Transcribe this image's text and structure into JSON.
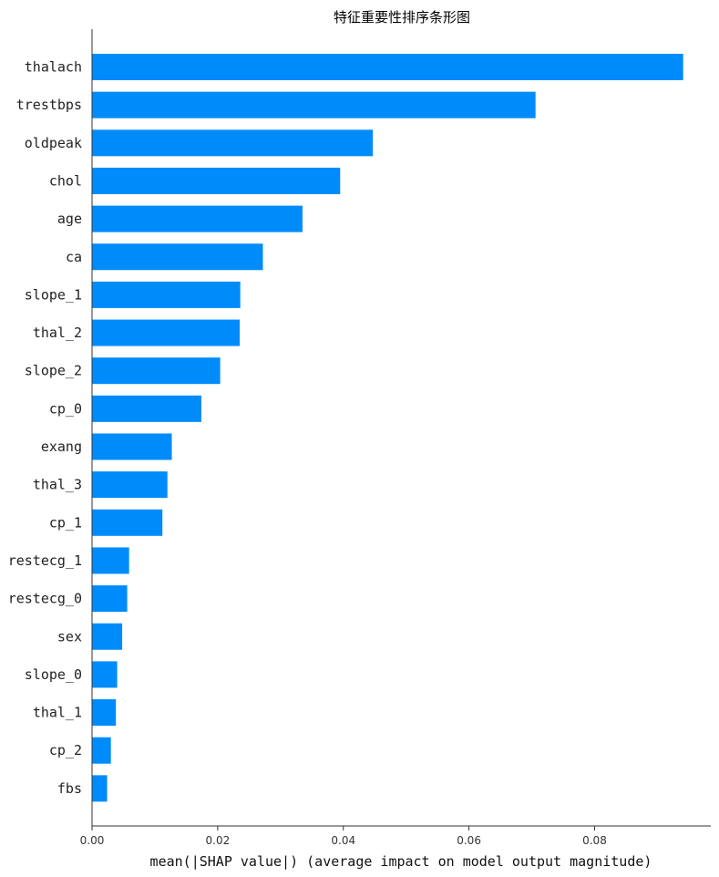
{
  "chart_data": {
    "type": "bar",
    "orientation": "horizontal",
    "title": "特征重要性排序条形图",
    "xlabel": "mean(|SHAP value|) (average impact on model output magnitude)",
    "ylabel": "",
    "xlim": [
      0,
      0.0985
    ],
    "xticks": [
      {
        "value": 0.0,
        "label": "0.00"
      },
      {
        "value": 0.02,
        "label": "0.02"
      },
      {
        "value": 0.04,
        "label": "0.04"
      },
      {
        "value": 0.06,
        "label": "0.06"
      },
      {
        "value": 0.08,
        "label": "0.08"
      }
    ],
    "grid": false,
    "bar_color": "#008bfb",
    "categories": [
      "thalach",
      "trestbps",
      "oldpeak",
      "chol",
      "age",
      "ca",
      "slope_1",
      "thal_2",
      "slope_2",
      "cp_0",
      "exang",
      "thal_3",
      "cp_1",
      "restecg_1",
      "restecg_0",
      "sex",
      "slope_0",
      "thal_1",
      "cp_2",
      "fbs"
    ],
    "values": [
      0.0941,
      0.0706,
      0.0447,
      0.0395,
      0.0335,
      0.0272,
      0.0236,
      0.0235,
      0.0204,
      0.0174,
      0.0127,
      0.012,
      0.0112,
      0.0059,
      0.0056,
      0.0048,
      0.004,
      0.0038,
      0.003,
      0.0024
    ]
  }
}
